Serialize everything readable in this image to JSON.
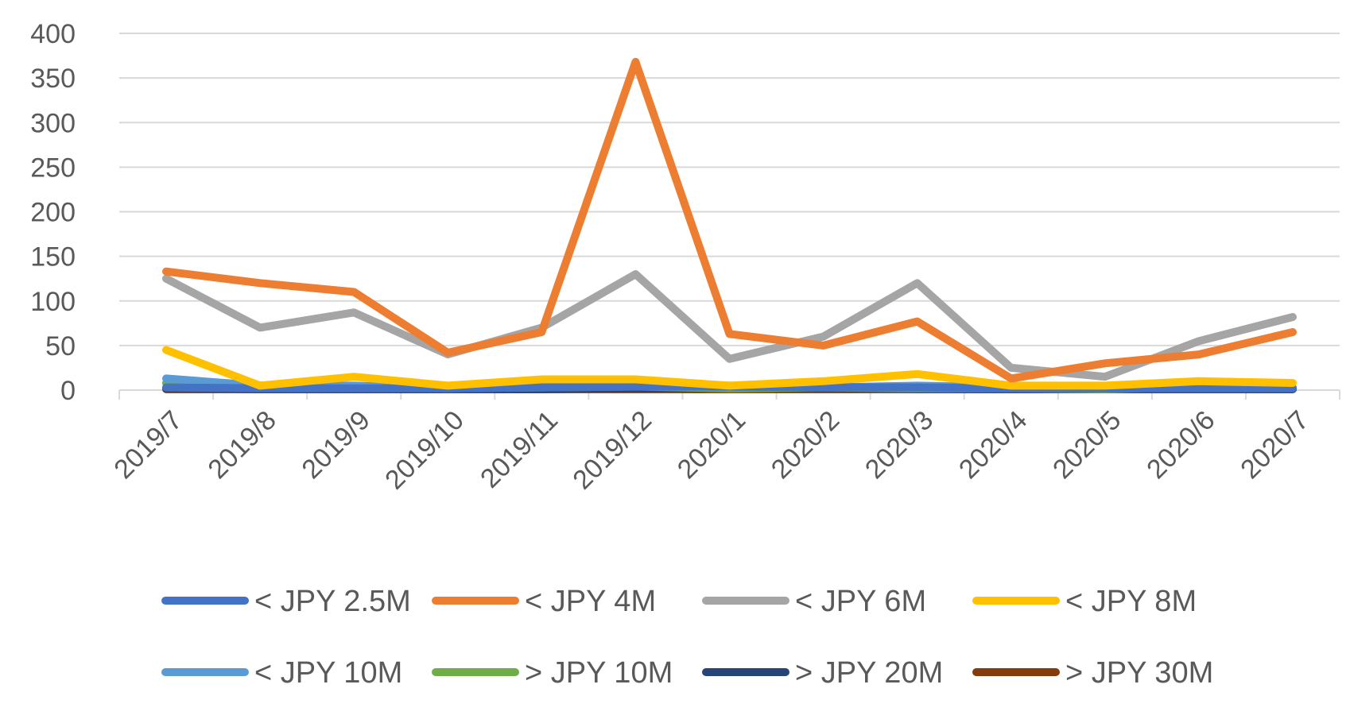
{
  "chart_data": {
    "type": "line",
    "title": "",
    "xlabel": "",
    "ylabel": "",
    "ylim": [
      0,
      400
    ],
    "yticks": [
      0,
      50,
      100,
      150,
      200,
      250,
      300,
      350,
      400
    ],
    "grid": true,
    "legend_position": "bottom",
    "categories": [
      "2019/7",
      "2019/8",
      "2019/9",
      "2019/10",
      "2019/11",
      "2019/12",
      "2020/1",
      "2020/2",
      "2020/3",
      "2020/4",
      "2020/5",
      "2020/6",
      "2020/7"
    ],
    "series": [
      {
        "name": "< JPY 2.5M",
        "color": "#4472C4",
        "values": [
          3,
          2,
          2,
          2,
          3,
          4,
          4,
          3,
          3,
          2,
          2,
          2,
          2
        ]
      },
      {
        "name": "< JPY 4M",
        "color": "#ED7D31",
        "values": [
          133,
          120,
          110,
          42,
          65,
          368,
          63,
          50,
          77,
          13,
          30,
          40,
          65
        ]
      },
      {
        "name": "< JPY 6M",
        "color": "#A5A5A5",
        "values": [
          125,
          70,
          87,
          40,
          70,
          130,
          35,
          60,
          120,
          25,
          15,
          55,
          82
        ]
      },
      {
        "name": "< JPY 8M",
        "color": "#FFC000",
        "values": [
          45,
          5,
          15,
          5,
          12,
          12,
          5,
          10,
          18,
          5,
          5,
          10,
          8
        ]
      },
      {
        "name": "< JPY 10M",
        "color": "#5B9BD5",
        "values": [
          13,
          5,
          5,
          2,
          5,
          8,
          5,
          3,
          5,
          3,
          2,
          3,
          3
        ]
      },
      {
        "name": "> JPY 10M",
        "color": "#70AD47",
        "values": [
          8,
          3,
          3,
          2,
          3,
          4,
          2,
          3,
          2,
          2,
          1,
          4,
          3
        ]
      },
      {
        "name": "> JPY 20M",
        "color": "#264478",
        "values": [
          2,
          1,
          1,
          1,
          1,
          2,
          2,
          2,
          1,
          1,
          1,
          1,
          1
        ]
      },
      {
        "name": "> JPY 30M",
        "color": "#843C0C",
        "values": [
          1,
          1,
          1,
          1,
          1,
          1,
          1,
          1,
          1,
          1,
          1,
          1,
          1
        ]
      }
    ]
  }
}
